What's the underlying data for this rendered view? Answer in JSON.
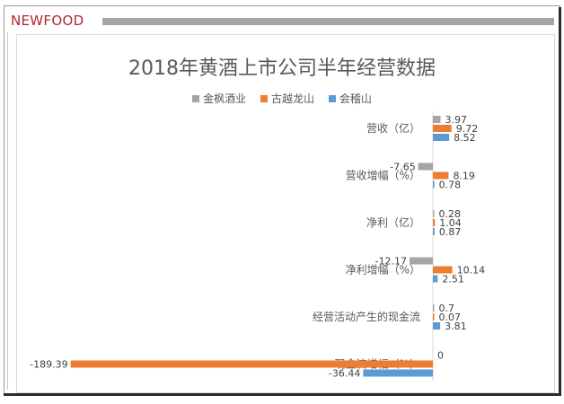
{
  "brand": {
    "name": "NEWFOOD"
  },
  "chart_data": {
    "type": "bar",
    "orientation": "horizontal",
    "title": "2018年黄酒上市公司半年经营数据",
    "categories": [
      "营收（亿）",
      "营收增幅（%）",
      "净利（亿）",
      "净利增幅（%）",
      "经营活动产生的现金流",
      "现金流增幅（%）"
    ],
    "series": [
      {
        "name": "金枫酒业",
        "color": "#a5a5a5",
        "values": [
          3.97,
          -7.65,
          0.28,
          -12.17,
          0.7,
          0
        ]
      },
      {
        "name": "古越龙山",
        "color": "#ed7d31",
        "values": [
          9.72,
          8.19,
          1.04,
          10.14,
          0.07,
          -189.39
        ]
      },
      {
        "name": "会稽山",
        "color": "#5b9bd5",
        "values": [
          8.52,
          0.78,
          0.87,
          2.51,
          3.81,
          -36.44
        ]
      }
    ],
    "value_labels": [
      [
        "3.97",
        "-7.65",
        "0.28",
        "-12.17",
        "0.7",
        "0"
      ],
      [
        "9.72",
        "8.19",
        "1.04",
        "10.14",
        "0.07",
        "-189.39"
      ],
      [
        "8.52",
        "0.78",
        "0.87",
        "2.51",
        "3.81",
        "-36.44"
      ]
    ],
    "legend_position": "top",
    "grid": false
  }
}
